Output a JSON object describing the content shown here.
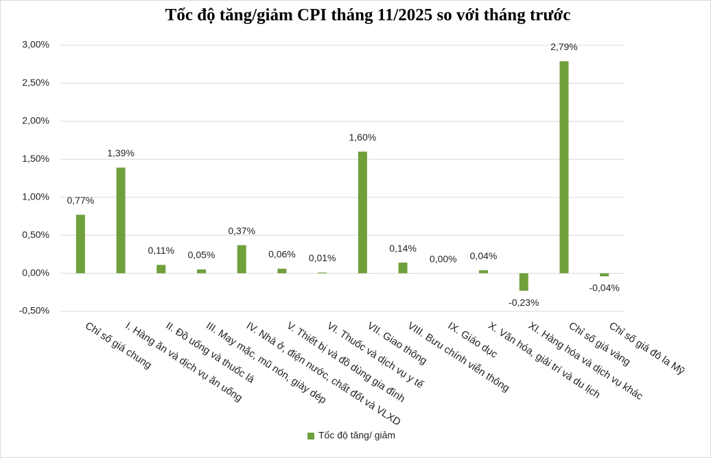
{
  "chart_data": {
    "type": "bar",
    "title": "Tốc độ tăng/giảm CPI tháng 11/2025 so với tháng trước",
    "categories": [
      "Chỉ số giá chung",
      "I. Hàng ăn và dịch vụ ăn uống",
      "II. Đồ uống và thuốc lá",
      "III. May mặc, mũ nón, giày dép",
      "IV. Nhà ở, điện nước, chất đốt và VLXD",
      "V. Thiết bị và đồ dùng gia đình",
      "VI. Thuốc và dịch vụ y tế",
      "VII. Giao thông",
      "VIII. Bưu chính viễn thông",
      "IX. Giáo dục",
      "X. Văn hóa, giải trí và du lịch",
      "XI. Hàng hóa và dịch vụ khác",
      "Chỉ số giá vàng",
      "Chỉ số giá đô la Mỹ"
    ],
    "series": [
      {
        "name": "Tốc độ tăng/ giảm",
        "color": "#70a03c",
        "values": [
          0.77,
          1.39,
          0.11,
          0.05,
          0.37,
          0.06,
          0.01,
          1.6,
          0.14,
          0.0,
          0.04,
          -0.23,
          2.79,
          -0.04
        ],
        "value_labels": [
          "0,77%",
          "1,39%",
          "0,11%",
          "0,05%",
          "0,37%",
          "0,06%",
          "0,01%",
          "1,60%",
          "0,14%",
          "0,00%",
          "0,04%",
          "-0,23%",
          "2,79%",
          "-0,04%"
        ]
      }
    ],
    "ylim": [
      -0.5,
      3.0
    ],
    "yticks": [
      {
        "value": -0.5,
        "label": "-0,50%"
      },
      {
        "value": 0,
        "label": "0,00%"
      },
      {
        "value": 0.5,
        "label": "0,50%"
      },
      {
        "value": 1.0,
        "label": "1,00%"
      },
      {
        "value": 1.5,
        "label": "1,50%"
      },
      {
        "value": 2.0,
        "label": "2,00%"
      },
      {
        "value": 2.5,
        "label": "2,50%"
      },
      {
        "value": 3.0,
        "label": "3,00%"
      }
    ],
    "grid": true,
    "legend": "bottom"
  }
}
